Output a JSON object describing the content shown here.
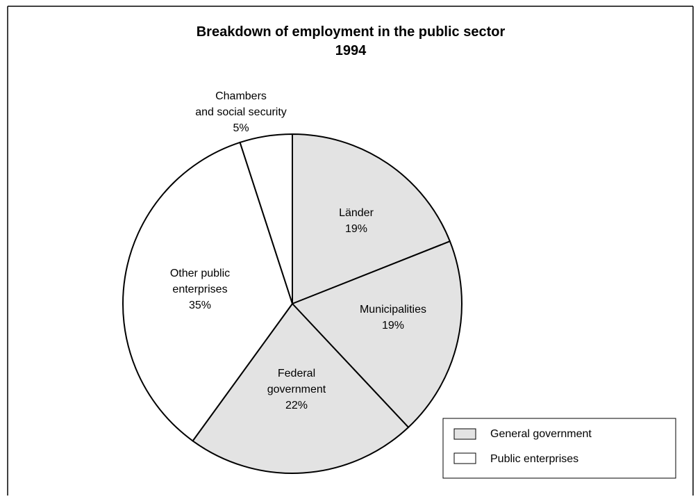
{
  "chart_data": {
    "type": "pie",
    "title": "Breakdown of employment in the public sector",
    "subtitle": "1994",
    "slices": [
      {
        "name": "Länder",
        "label_lines": [
          "Länder",
          "19%"
        ],
        "value": 19,
        "group": "General government"
      },
      {
        "name": "Municipalities",
        "label_lines": [
          "Municipalities",
          "19%"
        ],
        "value": 19,
        "group": "General government"
      },
      {
        "name": "Federal government",
        "label_lines": [
          "Federal",
          "government",
          "22%"
        ],
        "value": 22,
        "group": "General government"
      },
      {
        "name": "Other public enterprises",
        "label_lines": [
          "Other public",
          "enterprises",
          "35%"
        ],
        "value": 35,
        "group": "Public enterprises"
      },
      {
        "name": "Chambers and social security",
        "label_lines": [
          "Chambers",
          "and social security",
          "5%"
        ],
        "value": 5,
        "group": "Public enterprises"
      }
    ],
    "legend": {
      "placement": "bottom-right",
      "entries": [
        {
          "label": "General government",
          "color": "#e3e3e3"
        },
        {
          "label": "Public enterprises",
          "color": "#ffffff"
        }
      ]
    }
  }
}
